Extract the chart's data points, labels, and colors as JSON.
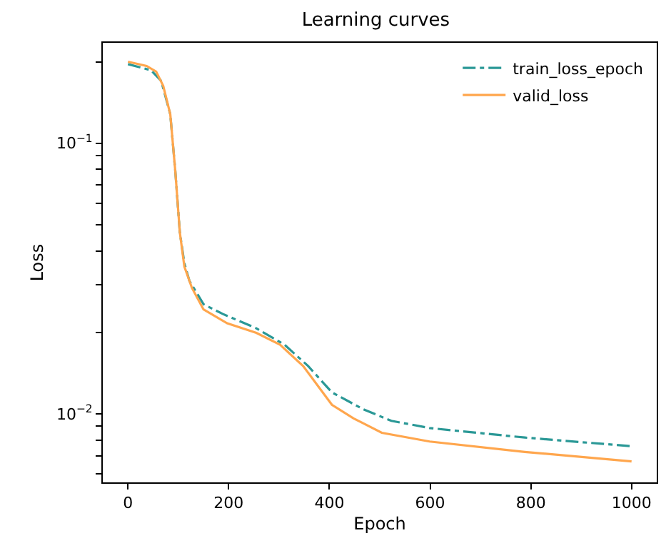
{
  "chart_data": {
    "type": "line",
    "title": "Learning curves",
    "xlabel": "Epoch",
    "ylabel": "Loss",
    "log": "y",
    "legend": "top right",
    "marker": "none",
    "xlim": [
      -50,
      1050
    ],
    "xticks": [
      0,
      200,
      400,
      600,
      800,
      1000
    ],
    "ylim": [
      0.00558,
      0.235
    ],
    "yticks": [
      {
        "value": 0.006,
        "label": null
      },
      {
        "value": 0.007,
        "label": null
      },
      {
        "value": 0.008,
        "label": null
      },
      {
        "value": 0.009,
        "label": null
      },
      {
        "value": 0.01,
        "label": "10$^{−2}$"
      },
      {
        "value": 0.02,
        "label": null
      },
      {
        "value": 0.03,
        "label": null
      },
      {
        "value": 0.04,
        "label": null
      },
      {
        "value": 0.05,
        "label": null
      },
      {
        "value": 0.06,
        "label": null
      },
      {
        "value": 0.07,
        "label": null
      },
      {
        "value": 0.08,
        "label": null
      },
      {
        "value": 0.09,
        "label": null
      },
      {
        "value": 0.1,
        "label": "10$^{−1}$"
      },
      {
        "value": 0.2,
        "label": null
      }
    ],
    "series": [
      {
        "name": "train_loss_epoch",
        "color": "#2a9896",
        "line_style": "dashdot",
        "x": [
          0,
          46,
          66,
          84,
          94,
          103,
          112,
          122,
          150,
          188,
          255,
          311,
          358,
          405,
          467,
          523,
          599,
          788,
          1000
        ],
        "values": [
          0.196,
          0.186,
          0.17,
          0.128,
          0.0788,
          0.0468,
          0.036,
          0.031,
          0.0254,
          0.0234,
          0.0207,
          0.018,
          0.015,
          0.012,
          0.0104,
          0.00942,
          0.00886,
          0.00817,
          0.00759
        ]
      },
      {
        "name": "valid_loss",
        "color": "#ffa64d",
        "line_style": "solid",
        "x": [
          0,
          37,
          56,
          70,
          84,
          94,
          103,
          112,
          127,
          150,
          197,
          255,
          302,
          348,
          405,
          448,
          504,
          599,
          788,
          1000
        ],
        "values": [
          0.2,
          0.193,
          0.184,
          0.163,
          0.128,
          0.0788,
          0.0468,
          0.035,
          0.0292,
          0.0243,
          0.0216,
          0.0199,
          0.018,
          0.015,
          0.0108,
          0.00962,
          0.00851,
          0.0079,
          0.00723,
          0.00667
        ]
      }
    ]
  }
}
